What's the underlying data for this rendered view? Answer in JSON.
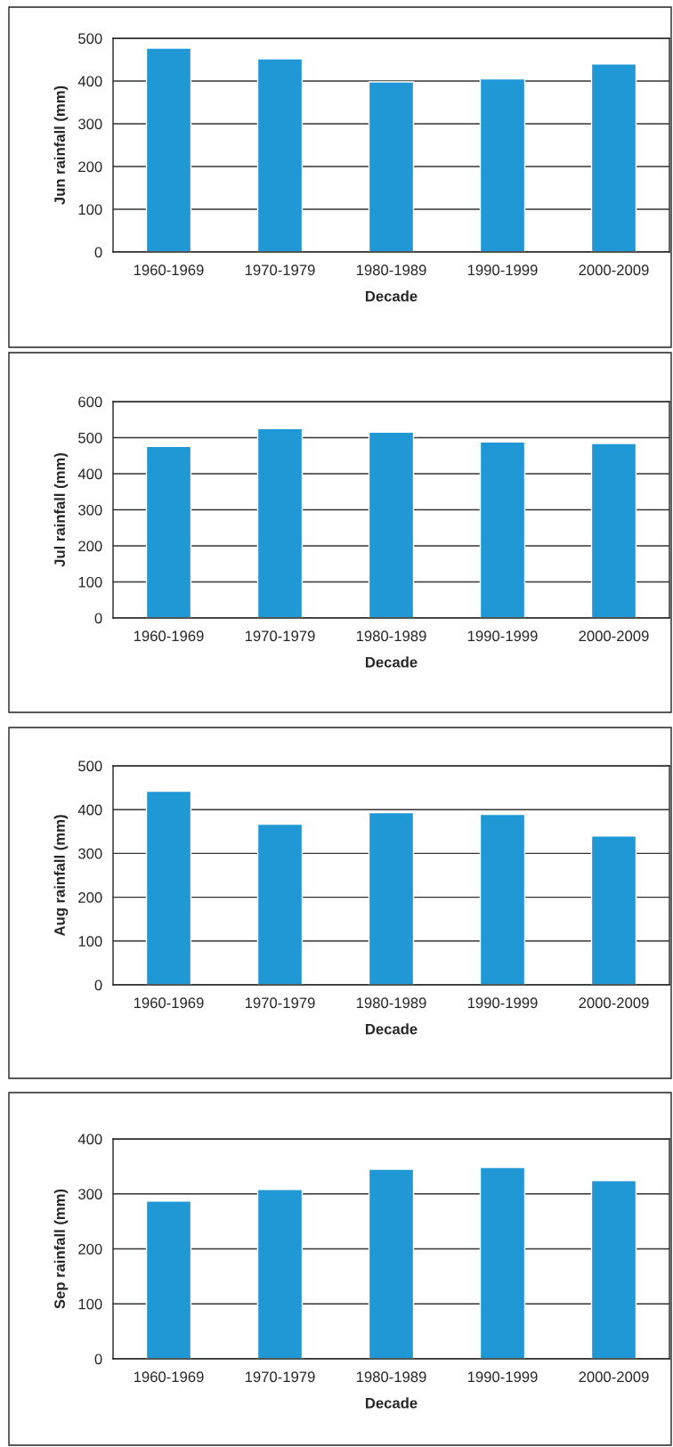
{
  "chart_data": [
    {
      "type": "bar",
      "categories": [
        "1960-1969",
        "1970-1979",
        "1980-1989",
        "1990-1999",
        "2000-2009"
      ],
      "values": [
        477,
        452,
        398,
        405,
        440
      ],
      "color": "#1f98d5",
      "xlabel": "Decade",
      "ylabel": "Jun rainfall (mm)",
      "ylim": [
        0,
        500
      ],
      "yticks": [
        0,
        100,
        200,
        300,
        400,
        500
      ],
      "grid": "y",
      "legend": false
    },
    {
      "type": "bar",
      "categories": [
        "1960-1969",
        "1970-1979",
        "1980-1989",
        "1990-1999",
        "2000-2009"
      ],
      "values": [
        476,
        525,
        515,
        488,
        484
      ],
      "color": "#1f98d5",
      "xlabel": "Decade",
      "ylabel": "Jul rainfall (mm)",
      "ylim": [
        0,
        600
      ],
      "yticks": [
        0,
        100,
        200,
        300,
        400,
        500,
        600
      ],
      "grid": "y",
      "legend": false
    },
    {
      "type": "bar",
      "categories": [
        "1960-1969",
        "1970-1979",
        "1980-1989",
        "1990-1999",
        "2000-2009"
      ],
      "values": [
        442,
        367,
        393,
        389,
        340
      ],
      "color": "#1f98d5",
      "xlabel": "Decade",
      "ylabel": "Aug rainfall (mm)",
      "ylim": [
        0,
        500
      ],
      "yticks": [
        0,
        100,
        200,
        300,
        400,
        500
      ],
      "grid": "y",
      "legend": false
    },
    {
      "type": "bar",
      "categories": [
        "1960-1969",
        "1970-1979",
        "1980-1989",
        "1990-1999",
        "2000-2009"
      ],
      "values": [
        287,
        308,
        345,
        348,
        324
      ],
      "color": "#1f98d5",
      "xlabel": "Decade",
      "ylabel": "Sep rainfall (mm)",
      "ylim": [
        0,
        400
      ],
      "yticks": [
        0,
        100,
        200,
        300,
        400
      ],
      "grid": "y",
      "legend": false
    }
  ]
}
